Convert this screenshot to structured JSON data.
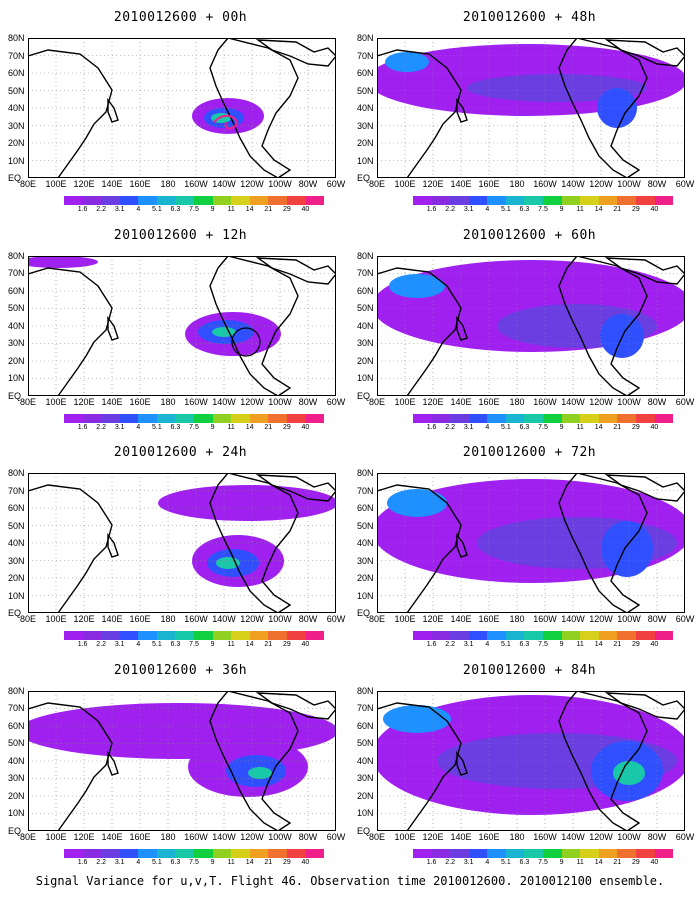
{
  "panels": [
    {
      "title": "2010012600 + 00h",
      "col": 0,
      "row": 0
    },
    {
      "title": "2010012600 + 48h",
      "col": 1,
      "row": 0
    },
    {
      "title": "2010012600 + 12h",
      "col": 0,
      "row": 1
    },
    {
      "title": "2010012600 + 60h",
      "col": 1,
      "row": 1
    },
    {
      "title": "2010012600 + 24h",
      "col": 0,
      "row": 2
    },
    {
      "title": "2010012600 + 72h",
      "col": 1,
      "row": 2
    },
    {
      "title": "2010012600 + 36h",
      "col": 0,
      "row": 3
    },
    {
      "title": "2010012600 + 84h",
      "col": 1,
      "row": 3
    }
  ],
  "lat_labels": [
    "80N",
    "70N",
    "60N",
    "50N",
    "40N",
    "30N",
    "20N",
    "10N",
    "EQ"
  ],
  "lon_labels": [
    "80E",
    "100E",
    "120E",
    "140E",
    "160E",
    "180",
    "160W",
    "140W",
    "120W",
    "100W",
    "80W",
    "60W"
  ],
  "colorbar": {
    "labels": [
      "1.6",
      "2.2",
      "3.1",
      "4",
      "5.1",
      "6.3",
      "7.5",
      "9",
      "11",
      "14",
      "21",
      "29",
      "40"
    ],
    "colors": [
      "#a020f0",
      "#8a2be2",
      "#6a3ee0",
      "#3050ff",
      "#1e90ff",
      "#19b5d0",
      "#18c8a8",
      "#10d040",
      "#90d020",
      "#d6d01a",
      "#f0a020",
      "#f07030",
      "#f04040",
      "#f0208a"
    ]
  },
  "caption": "Signal Variance for u,v,T. Flight 46. Observation time 2010012600. 2010012100 ensemble."
}
